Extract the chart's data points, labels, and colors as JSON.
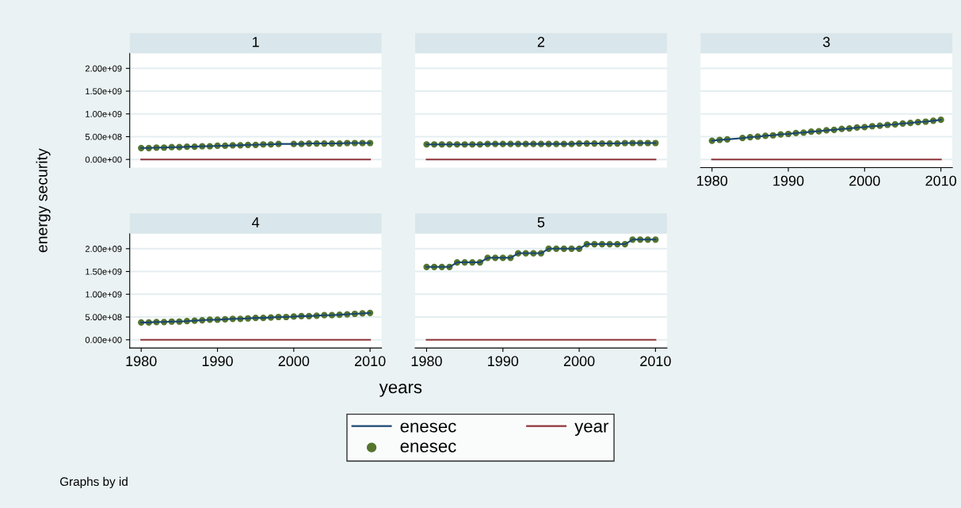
{
  "chart_data": [
    {
      "type": "line",
      "title": "1",
      "ylabel": "energy security",
      "legend": "bottom",
      "annotations": [
        "Graphs by id"
      ],
      "tick_labels": "y",
      "grid": "y",
      "x": [
        1980,
        1981,
        1982,
        1983,
        1984,
        1985,
        1986,
        1987,
        1988,
        1989,
        1990,
        1991,
        1992,
        1993,
        1994,
        1995,
        1996,
        1997,
        1998,
        1999,
        2000,
        2001,
        2002,
        2003,
        2004,
        2005,
        2006,
        2007,
        2008,
        2009,
        2010
      ],
      "xlim": [
        1978.5,
        2011.5
      ],
      "ylim": [
        -180000000,
        2330000000
      ],
      "yticks": [
        {
          "value": 0,
          "label": "0.00e+00"
        },
        {
          "value": 500000000,
          "label": "5.00e+08"
        },
        {
          "value": 1000000000,
          "label": "1.00e+09"
        },
        {
          "value": 1500000000,
          "label": "1.50e+09"
        },
        {
          "value": 2000000000,
          "label": "2.00e+09"
        }
      ],
      "series": [
        {
          "name": "enesec",
          "color": "#1a476f",
          "values": [
            250000000.0,
            250000000.0,
            260000000.0,
            260000000.0,
            270000000.0,
            270000000.0,
            280000000.0,
            280000000.0,
            290000000.0,
            290000000.0,
            300000000.0,
            300000000.0,
            310000000.0,
            310000000.0,
            320000000.0,
            320000000.0,
            330000000.0,
            330000000.0,
            340000000.0,
            null,
            340000000.0,
            340000000.0,
            350000000.0,
            350000000.0,
            350000000.0,
            350000000.0,
            350000000.0,
            360000000.0,
            360000000.0,
            360000000.0,
            360000000.0
          ]
        },
        {
          "name": "year",
          "color": "#90353b",
          "values": [
            1980,
            1981,
            1982,
            1983,
            1984,
            1985,
            1986,
            1987,
            1988,
            1989,
            1990,
            1991,
            1992,
            1993,
            1994,
            1995,
            1996,
            1997,
            1998,
            1999,
            2000,
            2001,
            2002,
            2003,
            2004,
            2005,
            2006,
            2007,
            2008,
            2009,
            2010
          ]
        },
        {
          "name": "enesec",
          "type": "scatter",
          "marker": "circle",
          "color": "#55752f",
          "values": [
            250000000.0,
            250000000.0,
            260000000.0,
            260000000.0,
            270000000.0,
            270000000.0,
            280000000.0,
            280000000.0,
            290000000.0,
            290000000.0,
            300000000.0,
            300000000.0,
            310000000.0,
            310000000.0,
            320000000.0,
            320000000.0,
            330000000.0,
            330000000.0,
            340000000.0,
            null,
            340000000.0,
            340000000.0,
            350000000.0,
            350000000.0,
            350000000.0,
            350000000.0,
            350000000.0,
            360000000.0,
            360000000.0,
            360000000.0,
            360000000.0
          ]
        }
      ]
    },
    {
      "type": "line",
      "title": "2",
      "tick_labels": false,
      "grid": "y",
      "x": [
        1980,
        1981,
        1982,
        1983,
        1984,
        1985,
        1986,
        1987,
        1988,
        1989,
        1990,
        1991,
        1992,
        1993,
        1994,
        1995,
        1996,
        1997,
        1998,
        1999,
        2000,
        2001,
        2002,
        2003,
        2004,
        2005,
        2006,
        2007,
        2008,
        2009,
        2010
      ],
      "xlim": [
        1978.5,
        2011.5
      ],
      "ylim": [
        -180000000,
        2330000000
      ],
      "yticks": [
        0,
        500000000,
        1000000000,
        1500000000,
        2000000000
      ],
      "series": [
        {
          "color": "#1a476f",
          "values": [
            330000000.0,
            330000000.0,
            330000000.0,
            330000000.0,
            330000000.0,
            330000000.0,
            330000000.0,
            330000000.0,
            340000000.0,
            340000000.0,
            340000000.0,
            340000000.0,
            340000000.0,
            340000000.0,
            340000000.0,
            340000000.0,
            340000000.0,
            340000000.0,
            340000000.0,
            340000000.0,
            350000000.0,
            350000000.0,
            350000000.0,
            350000000.0,
            350000000.0,
            350000000.0,
            360000000.0,
            360000000.0,
            360000000.0,
            360000000.0,
            360000000.0
          ]
        },
        {
          "color": "#90353b",
          "values": [
            1980,
            1981,
            1982,
            1983,
            1984,
            1985,
            1986,
            1987,
            1988,
            1989,
            1990,
            1991,
            1992,
            1993,
            1994,
            1995,
            1996,
            1997,
            1998,
            1999,
            2000,
            2001,
            2002,
            2003,
            2004,
            2005,
            2006,
            2007,
            2008,
            2009,
            2010
          ]
        },
        {
          "type": "scatter",
          "marker": "circle",
          "color": "#55752f",
          "values": [
            330000000.0,
            330000000.0,
            330000000.0,
            330000000.0,
            330000000.0,
            330000000.0,
            330000000.0,
            330000000.0,
            340000000.0,
            340000000.0,
            340000000.0,
            340000000.0,
            340000000.0,
            340000000.0,
            340000000.0,
            340000000.0,
            340000000.0,
            340000000.0,
            340000000.0,
            340000000.0,
            350000000.0,
            350000000.0,
            350000000.0,
            350000000.0,
            350000000.0,
            350000000.0,
            360000000.0,
            360000000.0,
            360000000.0,
            360000000.0,
            360000000.0
          ]
        }
      ]
    },
    {
      "type": "line",
      "title": "3",
      "tick_labels": "x",
      "grid": "y",
      "x": [
        1980,
        1981,
        1982,
        1983,
        1984,
        1985,
        1986,
        1987,
        1988,
        1989,
        1990,
        1991,
        1992,
        1993,
        1994,
        1995,
        1996,
        1997,
        1998,
        1999,
        2000,
        2001,
        2002,
        2003,
        2004,
        2005,
        2006,
        2007,
        2008,
        2009,
        2010
      ],
      "xlim": [
        1978.5,
        2011.5
      ],
      "xticks": [
        1980,
        1990,
        2000,
        2010
      ],
      "ylim": [
        -180000000,
        2330000000
      ],
      "yticks": [
        0,
        500000000,
        1000000000,
        1500000000,
        2000000000
      ],
      "series": [
        {
          "color": "#1a476f",
          "values": [
            410000000.0,
            430000000.0,
            440000000.0,
            null,
            470000000.0,
            490000000.0,
            500000000.0,
            520000000.0,
            530000000.0,
            550000000.0,
            560000000.0,
            580000000.0,
            590000000.0,
            610000000.0,
            620000000.0,
            640000000.0,
            650000000.0,
            670000000.0,
            680000000.0,
            700000000.0,
            710000000.0,
            730000000.0,
            740000000.0,
            760000000.0,
            770000000.0,
            790000000.0,
            800000000.0,
            820000000.0,
            830000000.0,
            850000000.0,
            870000000.0
          ]
        },
        {
          "color": "#90353b",
          "values": [
            1980,
            1981,
            1982,
            1983,
            1984,
            1985,
            1986,
            1987,
            1988,
            1989,
            1990,
            1991,
            1992,
            1993,
            1994,
            1995,
            1996,
            1997,
            1998,
            1999,
            2000,
            2001,
            2002,
            2003,
            2004,
            2005,
            2006,
            2007,
            2008,
            2009,
            2010
          ]
        },
        {
          "type": "scatter",
          "marker": "circle",
          "color": "#55752f",
          "values": [
            410000000.0,
            430000000.0,
            440000000.0,
            null,
            470000000.0,
            490000000.0,
            500000000.0,
            520000000.0,
            530000000.0,
            550000000.0,
            560000000.0,
            580000000.0,
            590000000.0,
            610000000.0,
            620000000.0,
            640000000.0,
            650000000.0,
            670000000.0,
            680000000.0,
            700000000.0,
            710000000.0,
            730000000.0,
            740000000.0,
            760000000.0,
            770000000.0,
            790000000.0,
            800000000.0,
            820000000.0,
            830000000.0,
            850000000.0,
            870000000.0
          ]
        }
      ]
    },
    {
      "type": "line",
      "title": "4",
      "grid": "y",
      "x": [
        1980,
        1981,
        1982,
        1983,
        1984,
        1985,
        1986,
        1987,
        1988,
        1989,
        1990,
        1991,
        1992,
        1993,
        1994,
        1995,
        1996,
        1997,
        1998,
        1999,
        2000,
        2001,
        2002,
        2003,
        2004,
        2005,
        2006,
        2007,
        2008,
        2009,
        2010
      ],
      "xlim": [
        1978.5,
        2011.5
      ],
      "xticks": [
        1980,
        1990,
        2000,
        2010
      ],
      "ylim": [
        -180000000,
        2330000000
      ],
      "yticks": [
        {
          "value": 0,
          "label": "0.00e+00"
        },
        {
          "value": 500000000,
          "label": "5.00e+08"
        },
        {
          "value": 1000000000,
          "label": "1.00e+09"
        },
        {
          "value": 1500000000,
          "label": "1.50e+09"
        },
        {
          "value": 2000000000,
          "label": "2.00e+09"
        }
      ],
      "series": [
        {
          "color": "#1a476f",
          "values": [
            380000000.0,
            380000000.0,
            390000000.0,
            390000000.0,
            400000000.0,
            400000000.0,
            410000000.0,
            420000000.0,
            430000000.0,
            440000000.0,
            440000000.0,
            450000000.0,
            460000000.0,
            460000000.0,
            470000000.0,
            480000000.0,
            480000000.0,
            490000000.0,
            500000000.0,
            500000000.0,
            510000000.0,
            520000000.0,
            520000000.0,
            530000000.0,
            540000000.0,
            540000000.0,
            550000000.0,
            560000000.0,
            570000000.0,
            580000000.0,
            590000000.0
          ]
        },
        {
          "color": "#90353b",
          "values": [
            1980,
            1981,
            1982,
            1983,
            1984,
            1985,
            1986,
            1987,
            1988,
            1989,
            1990,
            1991,
            1992,
            1993,
            1994,
            1995,
            1996,
            1997,
            1998,
            1999,
            2000,
            2001,
            2002,
            2003,
            2004,
            2005,
            2006,
            2007,
            2008,
            2009,
            2010
          ]
        },
        {
          "type": "scatter",
          "marker": "circle",
          "color": "#55752f",
          "values": [
            380000000.0,
            380000000.0,
            390000000.0,
            390000000.0,
            400000000.0,
            400000000.0,
            410000000.0,
            420000000.0,
            430000000.0,
            440000000.0,
            440000000.0,
            450000000.0,
            460000000.0,
            460000000.0,
            470000000.0,
            480000000.0,
            480000000.0,
            490000000.0,
            500000000.0,
            500000000.0,
            510000000.0,
            520000000.0,
            520000000.0,
            530000000.0,
            540000000.0,
            540000000.0,
            550000000.0,
            560000000.0,
            570000000.0,
            580000000.0,
            590000000.0
          ]
        }
      ]
    },
    {
      "type": "line",
      "title": "5",
      "xlabel": "years",
      "tick_labels": "x",
      "grid": "y",
      "x": [
        1980,
        1981,
        1982,
        1983,
        1984,
        1985,
        1986,
        1987,
        1988,
        1989,
        1990,
        1991,
        1992,
        1993,
        1994,
        1995,
        1996,
        1997,
        1998,
        1999,
        2000,
        2001,
        2002,
        2003,
        2004,
        2005,
        2006,
        2007,
        2008,
        2009,
        2010
      ],
      "xlim": [
        1978.5,
        2011.5
      ],
      "xticks": [
        1980,
        1990,
        2000,
        2010
      ],
      "ylim": [
        -180000000,
        2330000000
      ],
      "yticks": [
        0,
        500000000,
        1000000000,
        1500000000,
        2000000000
      ],
      "series": [
        {
          "color": "#1a476f",
          "values": [
            1600000000.0,
            1600000000.0,
            1600000000.0,
            1600000000.0,
            1700000000.0,
            1700000000.0,
            1700000000.0,
            1700000000.0,
            1800000000.0,
            1800000000.0,
            1800000000.0,
            1800000000.0,
            1900000000.0,
            1900000000.0,
            1900000000.0,
            1900000000.0,
            2000000000.0,
            2000000000.0,
            2000000000.0,
            2000000000.0,
            2000000000.0,
            2100000000.0,
            2100000000.0,
            2100000000.0,
            2100000000.0,
            2100000000.0,
            2100000000.0,
            2200000000.0,
            2200000000.0,
            2200000000.0,
            2200000000.0
          ]
        },
        {
          "color": "#90353b",
          "values": [
            1980,
            1981,
            1982,
            1983,
            1984,
            1985,
            1986,
            1987,
            1988,
            1989,
            1990,
            1991,
            1992,
            1993,
            1994,
            1995,
            1996,
            1997,
            1998,
            1999,
            2000,
            2001,
            2002,
            2003,
            2004,
            2005,
            2006,
            2007,
            2008,
            2009,
            2010
          ]
        },
        {
          "type": "scatter",
          "marker": "circle",
          "color": "#55752f",
          "values": [
            1600000000.0,
            1600000000.0,
            1600000000.0,
            1600000000.0,
            1700000000.0,
            1700000000.0,
            1700000000.0,
            1700000000.0,
            1800000000.0,
            1800000000.0,
            1800000000.0,
            1800000000.0,
            1900000000.0,
            1900000000.0,
            1900000000.0,
            1900000000.0,
            2000000000.0,
            2000000000.0,
            2000000000.0,
            2000000000.0,
            2000000000.0,
            2100000000.0,
            2100000000.0,
            2100000000.0,
            2100000000.0,
            2100000000.0,
            2100000000.0,
            2200000000.0,
            2200000000.0,
            2200000000.0,
            2200000000.0
          ]
        }
      ]
    }
  ]
}
